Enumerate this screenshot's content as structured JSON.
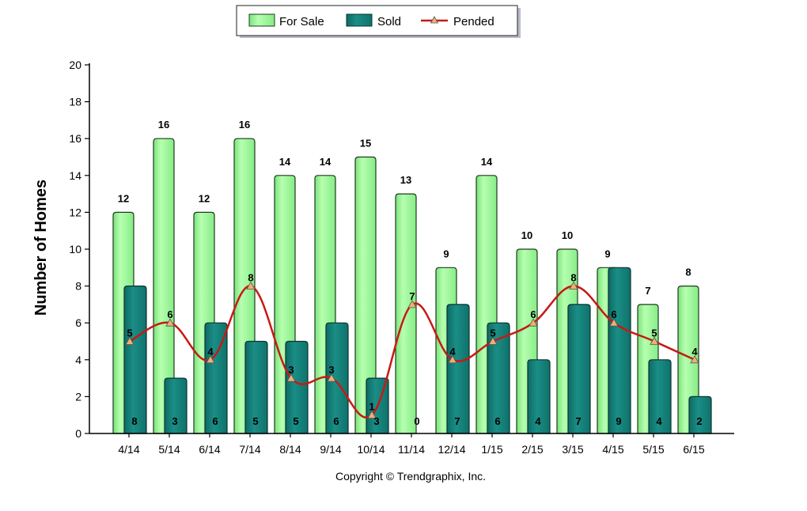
{
  "chart_data": {
    "type": "bar",
    "categories": [
      "4/14",
      "5/14",
      "6/14",
      "7/14",
      "8/14",
      "9/14",
      "10/14",
      "11/14",
      "12/14",
      "1/15",
      "2/15",
      "3/15",
      "4/15",
      "5/15",
      "6/15"
    ],
    "series": [
      {
        "name": "For Sale",
        "type": "bar",
        "values": [
          12,
          16,
          12,
          16,
          14,
          14,
          15,
          13,
          9,
          14,
          10,
          10,
          9,
          7,
          8
        ]
      },
      {
        "name": "Sold",
        "type": "bar",
        "values": [
          8,
          3,
          6,
          5,
          5,
          6,
          3,
          0,
          7,
          6,
          4,
          7,
          9,
          4,
          2
        ]
      },
      {
        "name": "Pended",
        "type": "line",
        "values": [
          5,
          6,
          4,
          8,
          3,
          3,
          1,
          7,
          4,
          5,
          6,
          8,
          6,
          5,
          4
        ]
      }
    ],
    "ylabel": "Number of Homes",
    "ylim": [
      0,
      20
    ],
    "yticks": [
      0,
      2,
      4,
      6,
      8,
      10,
      12,
      14,
      16,
      18,
      20
    ],
    "legend_position": "top-center",
    "grid": false,
    "colors": {
      "for_sale": "#98f598",
      "sold": "#137f78",
      "pended": "#c61a14",
      "pended_marker": "#f0b070"
    }
  },
  "footer": "Copyright © Trendgraphix, Inc."
}
